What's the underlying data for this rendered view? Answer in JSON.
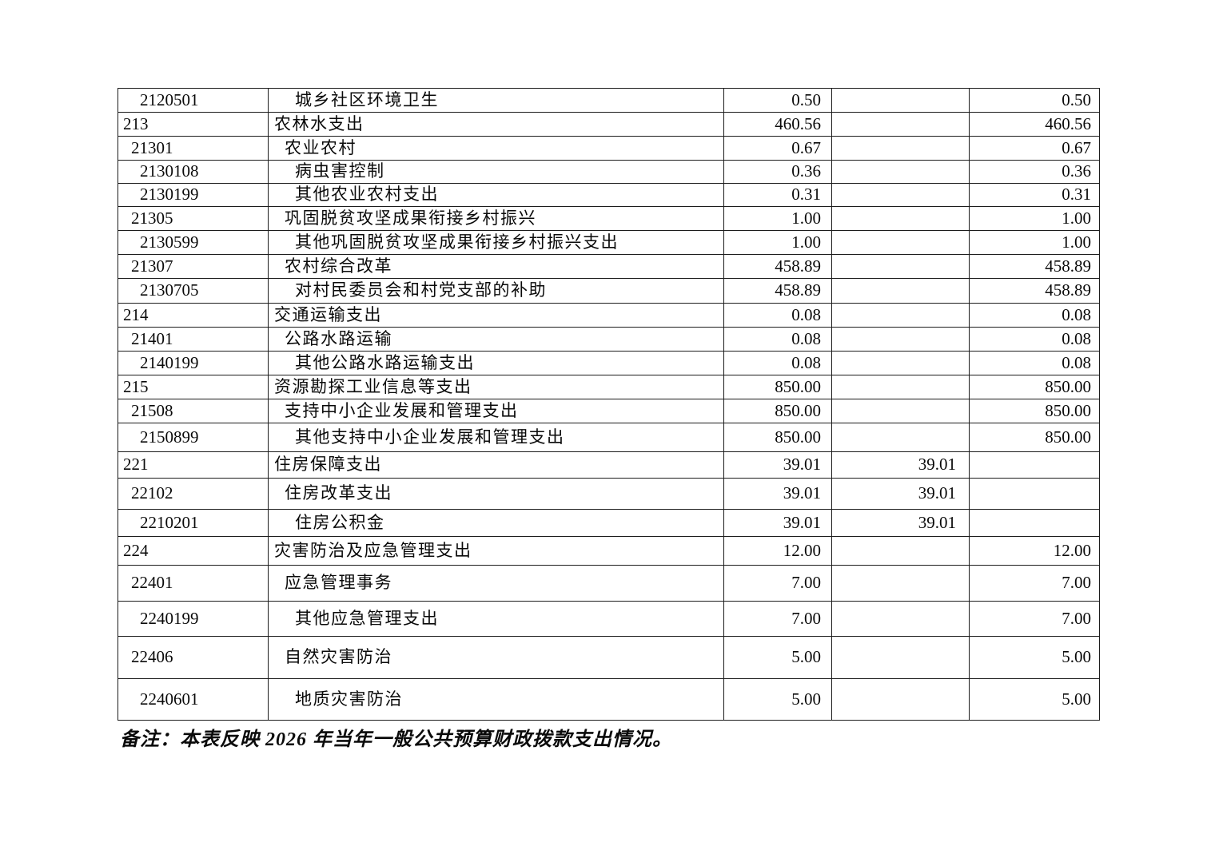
{
  "note": "备注：本表反映 2026 年当年一般公共预算财政拨款支出情况。",
  "table": {
    "rows": [
      {
        "code": "2120501",
        "name": "城乡社区环境卫生",
        "level": 2,
        "a1": "0.50",
        "a2": "",
        "a3": "0.50"
      },
      {
        "code": "213",
        "name": "农林水支出",
        "level": 0,
        "a1": "460.56",
        "a2": "",
        "a3": "460.56"
      },
      {
        "code": "21301",
        "name": "农业农村",
        "level": 1,
        "a1": "0.67",
        "a2": "",
        "a3": "0.67"
      },
      {
        "code": "2130108",
        "name": "病虫害控制",
        "level": 2,
        "a1": "0.36",
        "a2": "",
        "a3": "0.36"
      },
      {
        "code": "2130199",
        "name": "其他农业农村支出",
        "level": 2,
        "a1": "0.31",
        "a2": "",
        "a3": "0.31"
      },
      {
        "code": "21305",
        "name": "巩固脱贫攻坚成果衔接乡村振兴",
        "level": 1,
        "a1": "1.00",
        "a2": "",
        "a3": "1.00"
      },
      {
        "code": "2130599",
        "name": "其他巩固脱贫攻坚成果衔接乡村振兴支出",
        "level": 2,
        "a1": "1.00",
        "a2": "",
        "a3": "1.00"
      },
      {
        "code": "21307",
        "name": "农村综合改革",
        "level": 1,
        "a1": "458.89",
        "a2": "",
        "a3": "458.89"
      },
      {
        "code": "2130705",
        "name": "对村民委员会和村党支部的补助",
        "level": 2,
        "a1": "458.89",
        "a2": "",
        "a3": "458.89"
      },
      {
        "code": "214",
        "name": "交通运输支出",
        "level": 0,
        "a1": "0.08",
        "a2": "",
        "a3": "0.08"
      },
      {
        "code": "21401",
        "name": "公路水路运输",
        "level": 1,
        "a1": "0.08",
        "a2": "",
        "a3": "0.08"
      },
      {
        "code": "2140199",
        "name": "其他公路水路运输支出",
        "level": 2,
        "a1": "0.08",
        "a2": "",
        "a3": "0.08"
      },
      {
        "code": "215",
        "name": "资源勘探工业信息等支出",
        "level": 0,
        "a1": "850.00",
        "a2": "",
        "a3": "850.00"
      },
      {
        "code": "21508",
        "name": "支持中小企业发展和管理支出",
        "level": 1,
        "a1": "850.00",
        "a2": "",
        "a3": "850.00"
      },
      {
        "code": "2150899",
        "name": "其他支持中小企业发展和管理支出",
        "level": 2,
        "a1": "850.00",
        "a2": "",
        "a3": "850.00"
      },
      {
        "code": "221",
        "name": "住房保障支出",
        "level": 0,
        "a1": "39.01",
        "a2": "39.01",
        "a3": ""
      },
      {
        "code": "22102",
        "name": "住房改革支出",
        "level": 1,
        "a1": "39.01",
        "a2": "39.01",
        "a3": ""
      },
      {
        "code": "2210201",
        "name": "住房公积金",
        "level": 2,
        "a1": "39.01",
        "a2": "39.01",
        "a3": ""
      },
      {
        "code": "224",
        "name": "灾害防治及应急管理支出",
        "level": 0,
        "a1": "12.00",
        "a2": "",
        "a3": "12.00"
      },
      {
        "code": "22401",
        "name": "应急管理事务",
        "level": 1,
        "a1": "7.00",
        "a2": "",
        "a3": "7.00"
      },
      {
        "code": "2240199",
        "name": "其他应急管理支出",
        "level": 2,
        "a1": "7.00",
        "a2": "",
        "a3": "7.00"
      },
      {
        "code": "22406",
        "name": "自然灾害防治",
        "level": 1,
        "a1": "5.00",
        "a2": "",
        "a3": "5.00"
      },
      {
        "code": "2240601",
        "name": "地质灾害防治",
        "level": 2,
        "a1": "5.00",
        "a2": "",
        "a3": "5.00"
      }
    ]
  }
}
